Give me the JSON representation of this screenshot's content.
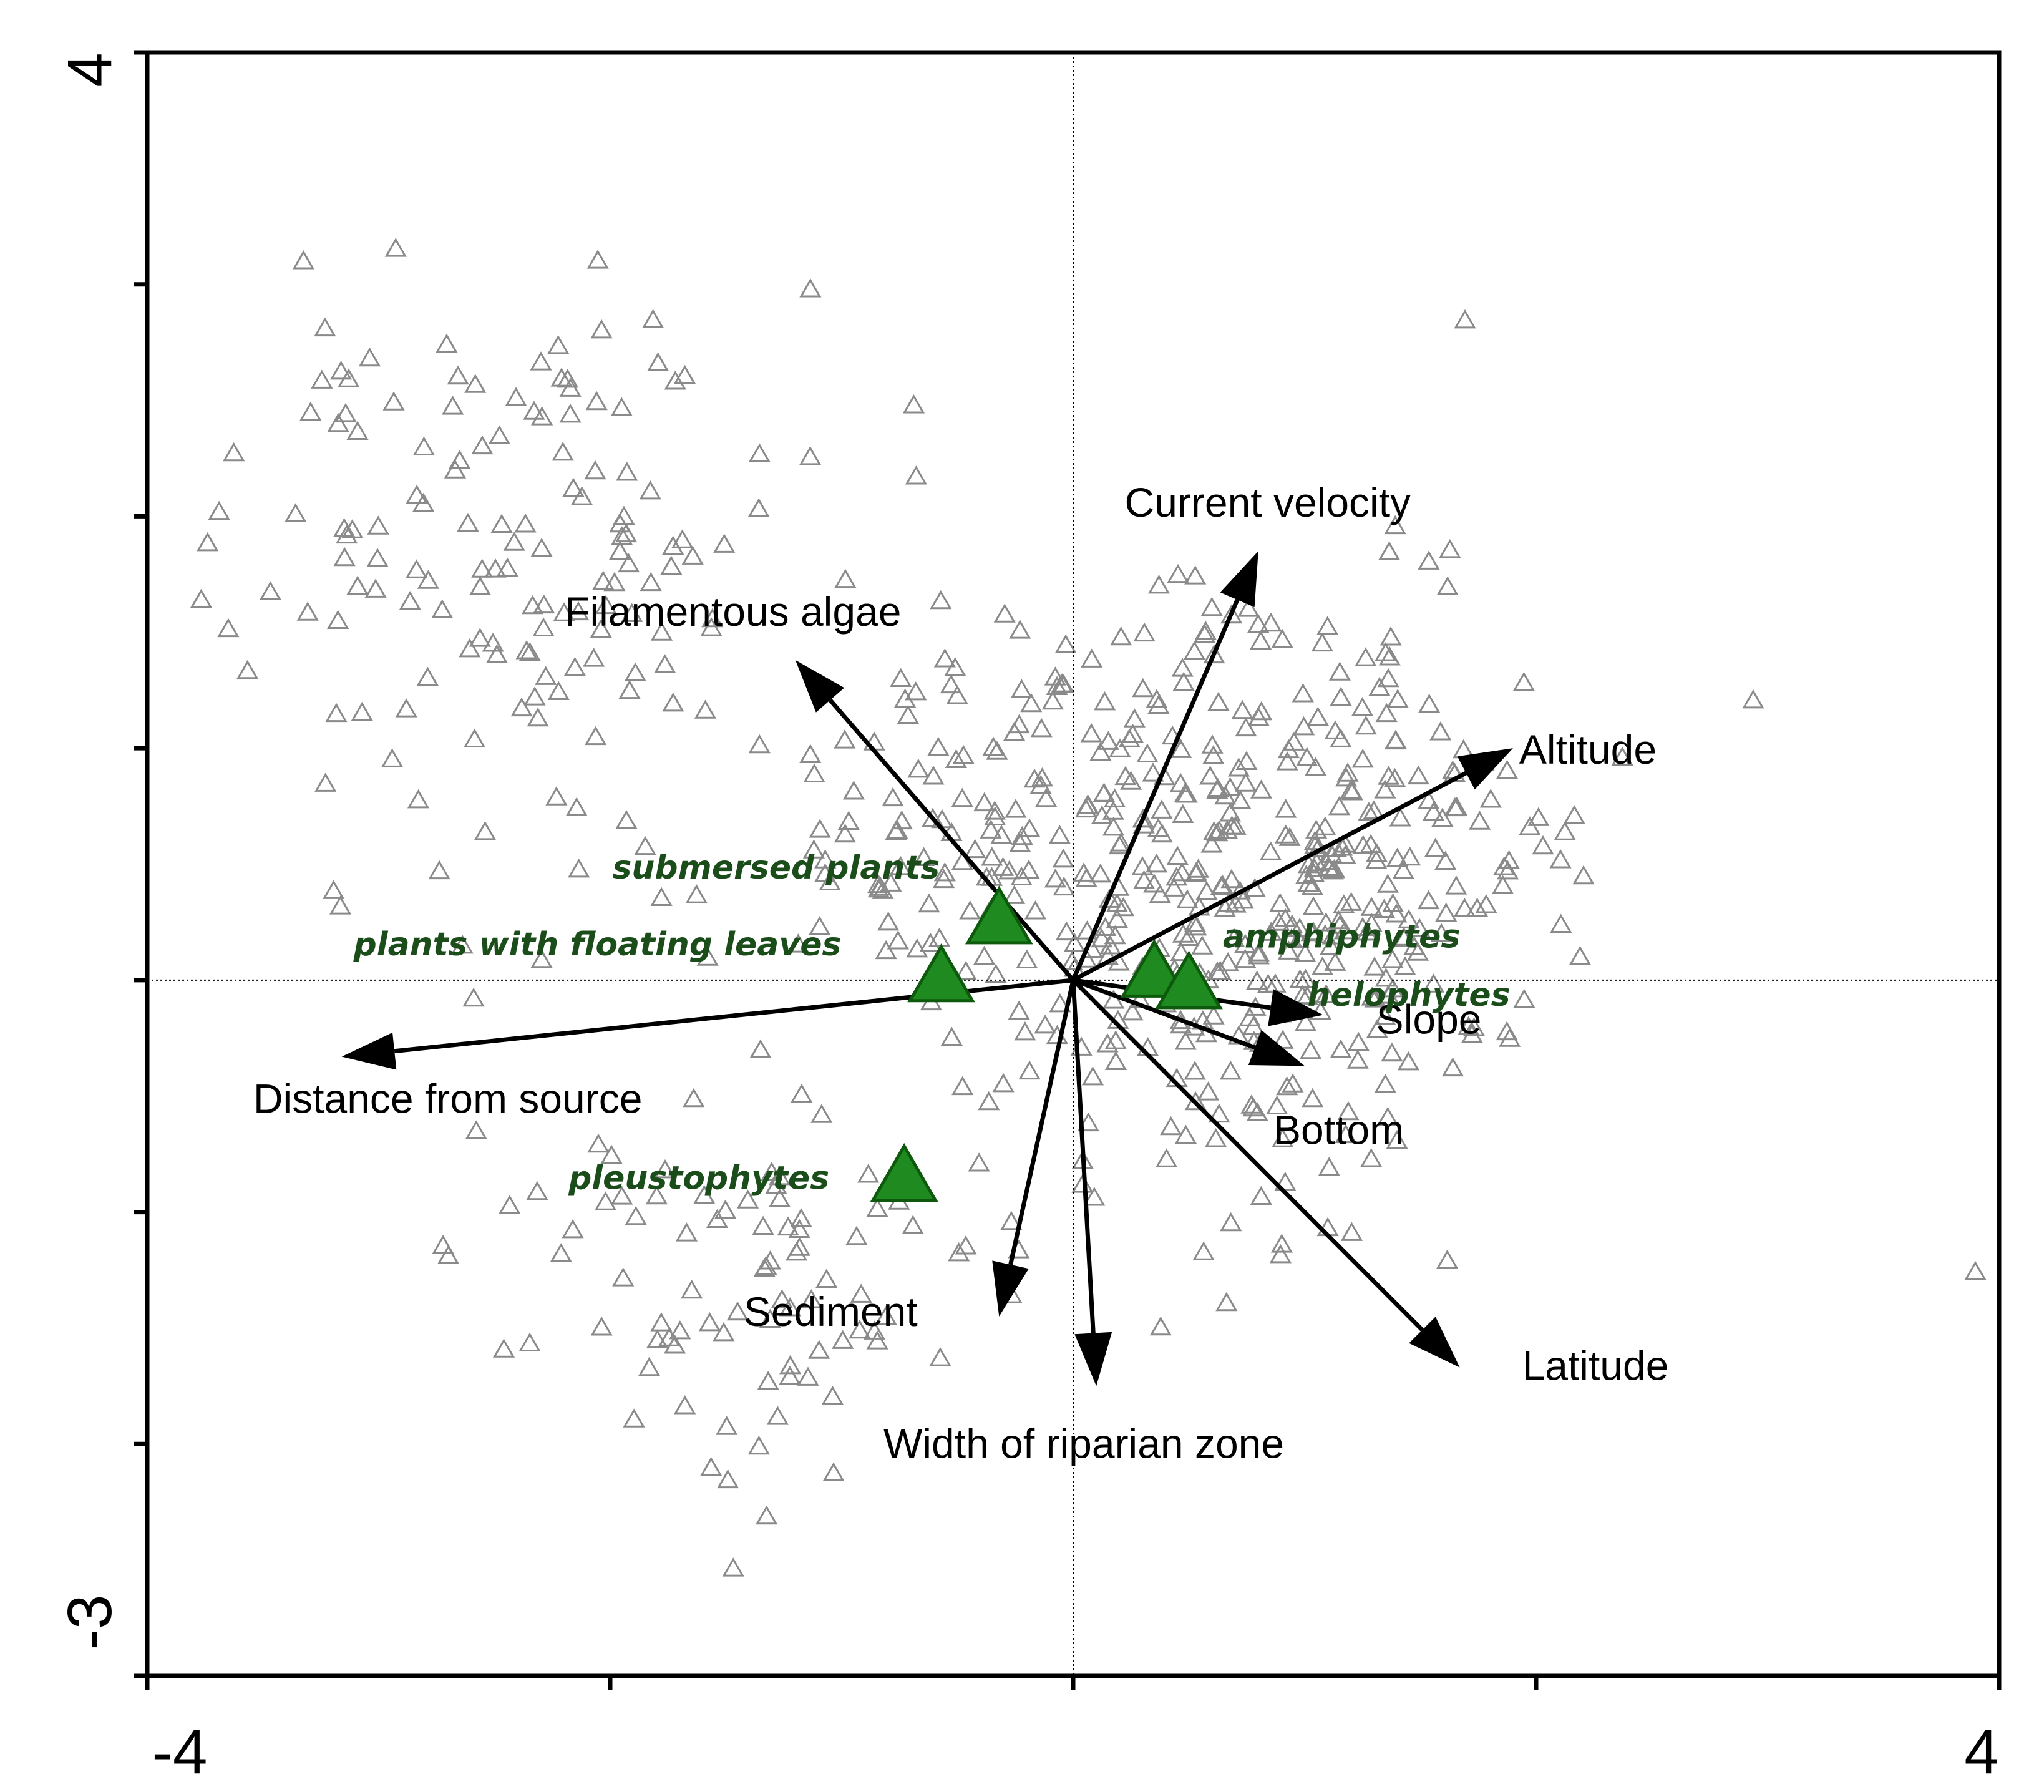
{
  "chart_data": {
    "type": "scatter",
    "title": "",
    "xlabel": "",
    "ylabel": "",
    "xlim": [
      -4,
      4
    ],
    "ylim": [
      -3,
      4
    ],
    "x_tick_labels": [
      "-4",
      "4"
    ],
    "y_tick_labels": [
      "4",
      "-3"
    ],
    "x_minor_ticks": [
      -4,
      -2,
      0,
      2,
      4
    ],
    "y_minor_ticks": [
      -3,
      -2,
      -1,
      0,
      1,
      2,
      3,
      4
    ],
    "zero_lines": true,
    "grid": false,
    "environmental_vectors": [
      {
        "name": "Current velocity",
        "x": 0.8,
        "y": 1.85
      },
      {
        "name": "Filamentous algae",
        "x": -1.2,
        "y": 1.38
      },
      {
        "name": "Altitude",
        "x": 1.9,
        "y": 1.0
      },
      {
        "name": "Distance from source",
        "x": -3.16,
        "y": -0.33
      },
      {
        "name": "Slope",
        "x": 1.08,
        "y": -0.15
      },
      {
        "name": "Bottom",
        "x": 1.0,
        "y": -0.37
      },
      {
        "name": "Sediment",
        "x": -0.32,
        "y": -1.45
      },
      {
        "name": "Width of riparian zone",
        "x": 0.1,
        "y": -1.75
      },
      {
        "name": "Latitude",
        "x": 1.67,
        "y": -1.67
      }
    ],
    "group_points": [
      {
        "name": "submersed plants",
        "x": -0.32,
        "y": 0.25
      },
      {
        "name": "plants with floating leaves",
        "x": -0.57,
        "y": 0.0
      },
      {
        "name": "amphiphytes",
        "x": 0.35,
        "y": 0.02
      },
      {
        "name": "helophytes",
        "x": 0.5,
        "y": -0.03
      },
      {
        "name": "pleustophytes",
        "x": -0.73,
        "y": -0.86
      }
    ]
  }
}
